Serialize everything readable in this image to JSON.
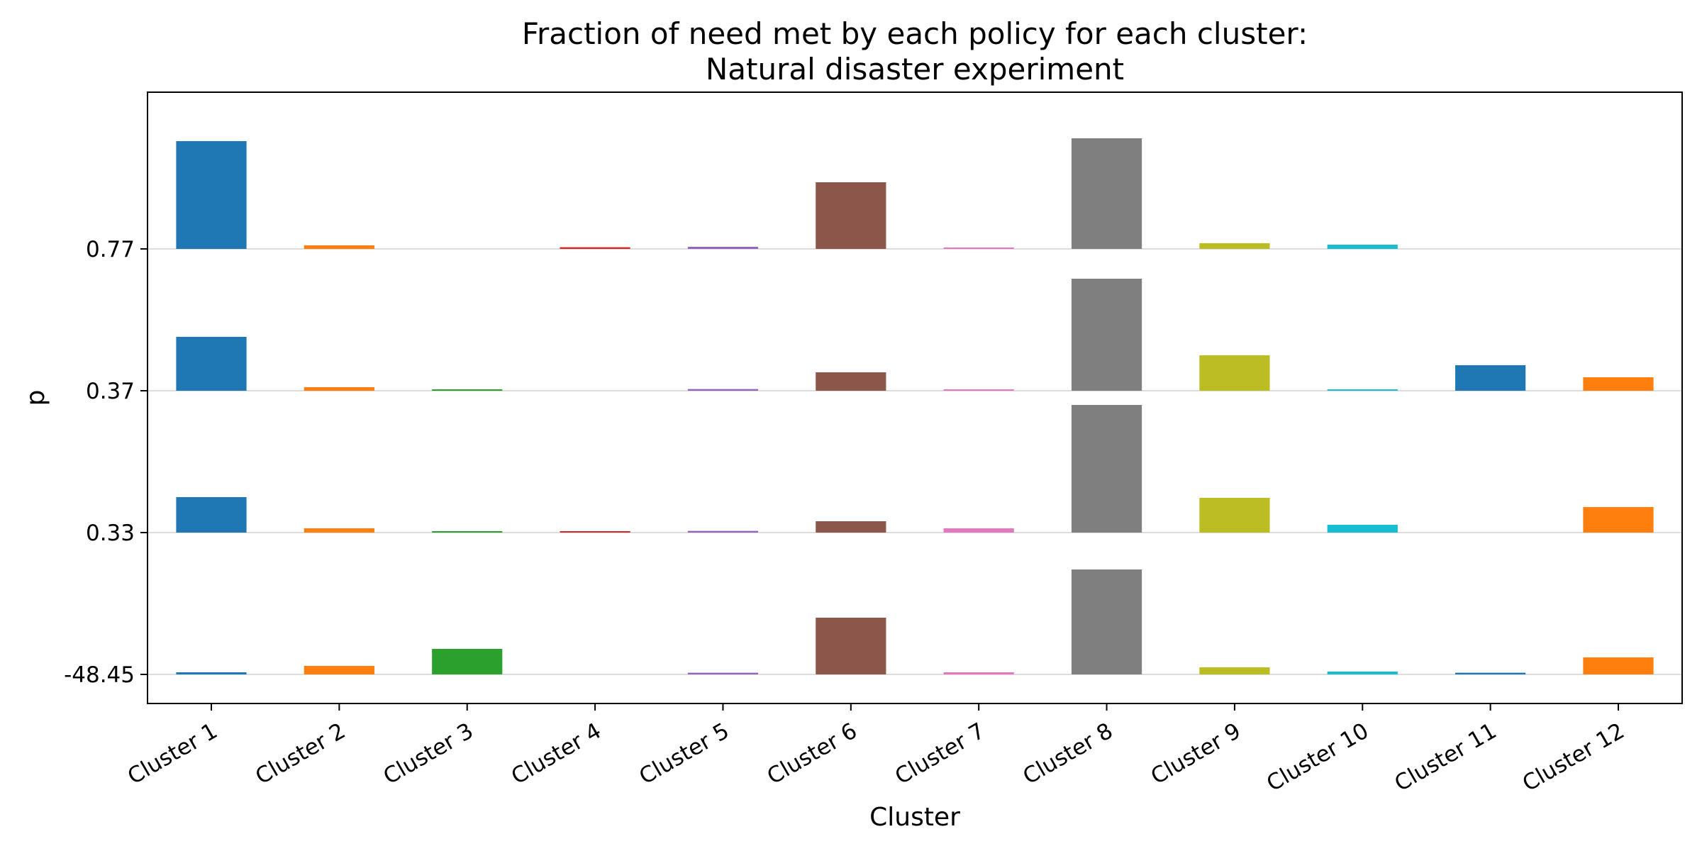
{
  "chart_data": {
    "type": "bar",
    "title": [
      "Fraction of need met by each policy for each cluster:",
      "Natural disaster experiment"
    ],
    "xlabel": "Cluster",
    "ylabel": "p",
    "categories": [
      "Cluster 1",
      "Cluster 2",
      "Cluster 3",
      "Cluster 4",
      "Cluster 5",
      "Cluster 6",
      "Cluster 7",
      "Cluster 8",
      "Cluster 9",
      "Cluster 10",
      "Cluster 11",
      "Cluster 12"
    ],
    "colors": [
      "#1f77b4",
      "#ff7f0e",
      "#2ca02c",
      "#d62728",
      "#9467bd",
      "#8c564b",
      "#e377c2",
      "#7f7f7f",
      "#bcbd22",
      "#17becf",
      "#1f77b4",
      "#ff7f0e"
    ],
    "gridlines": true,
    "policy_rows": [
      {
        "baseline_label": "0.77",
        "values": [
          0.76,
          0.025,
          0.0,
          0.012,
          0.015,
          0.47,
          0.006,
          0.78,
          0.04,
          0.03,
          0.0,
          0.0
        ]
      },
      {
        "baseline_label": "0.37",
        "values": [
          0.38,
          0.025,
          0.006,
          0.0,
          0.012,
          0.13,
          0.006,
          0.79,
          0.25,
          0.006,
          0.18,
          0.095
        ]
      },
      {
        "baseline_label": "0.33",
        "values": [
          0.25,
          0.03,
          0.006,
          0.006,
          0.012,
          0.08,
          0.03,
          0.9,
          0.245,
          0.055,
          0.0,
          0.18
        ]
      },
      {
        "baseline_label": "-48.45",
        "values": [
          0.015,
          0.06,
          0.18,
          0.0,
          0.012,
          0.4,
          0.015,
          0.74,
          0.05,
          0.02,
          0.012,
          0.12
        ]
      }
    ]
  }
}
